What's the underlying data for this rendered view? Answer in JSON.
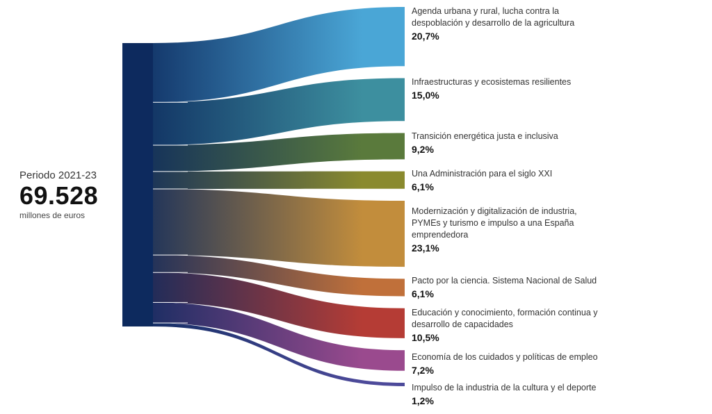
{
  "source": {
    "period": "Periodo 2021-23",
    "total": "69.528",
    "unit": "millones de euros"
  },
  "chart_data": {
    "type": "sankey",
    "source_label": "Periodo 2021-23",
    "total": 69528,
    "unit": "millones de euros",
    "flows": [
      {
        "name": "Agenda urbana y rural, lucha contra la despoblación y desarrollo de la agricultura",
        "percent": 20.7,
        "value_label": "20,7%",
        "color": "#4aa6d6"
      },
      {
        "name": "Infraestructuras y ecosistemas resilientes",
        "percent": 15.0,
        "value_label": "15,0%",
        "color": "#3d8f9f"
      },
      {
        "name": "Transición energética justa e inclusiva",
        "percent": 9.2,
        "value_label": "9,2%",
        "color": "#5a7a3c"
      },
      {
        "name": "Una Administración para el siglo XXI",
        "percent": 6.1,
        "value_label": "6,1%",
        "color": "#8a8a2e"
      },
      {
        "name": "Modernización y digitalización de industria, PYMEs y turismo e impulso a una España emprendedora",
        "percent": 23.1,
        "value_label": "23,1%",
        "color": "#c28d3c"
      },
      {
        "name": "Pacto por la ciencia. Sistema Nacional de Salud",
        "percent": 6.1,
        "value_label": "6,1%",
        "color": "#c0703a"
      },
      {
        "name": "Educación y conocimiento, formación continua y desarrollo de capacidades",
        "percent": 10.5,
        "value_label": "10,5%",
        "color": "#b53c35"
      },
      {
        "name": "Economía de los cuidados y políticas de empleo",
        "percent": 7.2,
        "value_label": "7,2%",
        "color": "#9a4a8e"
      },
      {
        "name": "Impulso de la industria de la cultura y el deporte",
        "percent": 1.2,
        "value_label": "1,2%",
        "color": "#4d4a9a"
      }
    ],
    "source_color": "#0d2a5e"
  }
}
